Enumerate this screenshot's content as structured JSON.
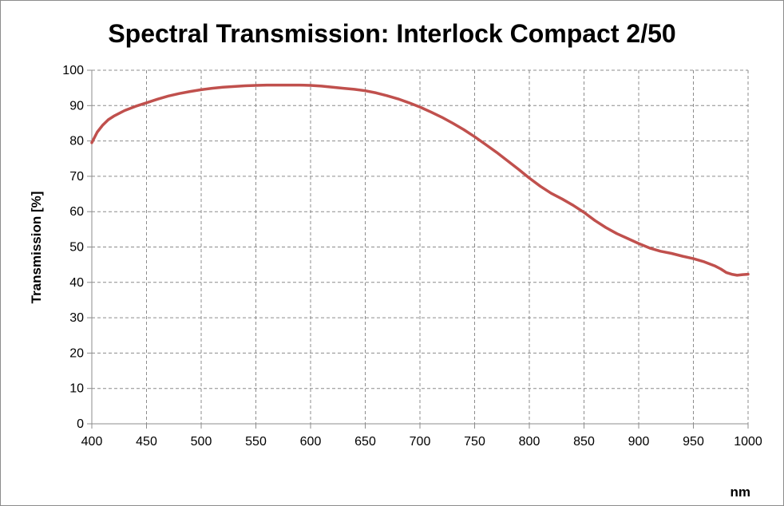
{
  "chart_data": {
    "type": "line",
    "title": "Spectral Transmission: Interlock Compact 2/50",
    "xlabel": "nm",
    "ylabel": "Transmission  [%]",
    "xlim": [
      400,
      1000
    ],
    "ylim": [
      0,
      100
    ],
    "x_ticks": [
      400,
      450,
      500,
      550,
      600,
      650,
      700,
      750,
      800,
      850,
      900,
      950,
      1000
    ],
    "y_ticks": [
      0,
      10,
      20,
      30,
      40,
      50,
      60,
      70,
      80,
      90,
      100
    ],
    "grid": true,
    "legend": "none",
    "series": [
      {
        "color": "#c0504d",
        "x": [
          400,
          405,
          410,
          415,
          420,
          430,
          440,
          450,
          460,
          470,
          480,
          490,
          500,
          510,
          520,
          530,
          540,
          550,
          560,
          570,
          580,
          590,
          600,
          610,
          620,
          630,
          640,
          650,
          660,
          670,
          680,
          690,
          700,
          710,
          720,
          730,
          740,
          750,
          760,
          770,
          780,
          790,
          800,
          810,
          820,
          830,
          840,
          850,
          860,
          870,
          880,
          890,
          900,
          910,
          920,
          930,
          940,
          950,
          960,
          970,
          975,
          980,
          985,
          990,
          995,
          1000
        ],
        "y": [
          79.5,
          82.5,
          84.5,
          86.0,
          87.0,
          88.6,
          89.8,
          90.8,
          91.8,
          92.7,
          93.4,
          94.0,
          94.5,
          94.9,
          95.2,
          95.4,
          95.6,
          95.7,
          95.8,
          95.8,
          95.8,
          95.8,
          95.7,
          95.5,
          95.2,
          94.9,
          94.6,
          94.2,
          93.6,
          92.8,
          91.9,
          90.8,
          89.6,
          88.2,
          86.7,
          85.0,
          83.2,
          81.2,
          79.0,
          76.8,
          74.4,
          72.0,
          69.5,
          67.2,
          65.2,
          63.6,
          61.8,
          59.8,
          57.5,
          55.5,
          53.8,
          52.4,
          51.0,
          49.7,
          48.8,
          48.2,
          47.4,
          46.7,
          45.8,
          44.6,
          43.8,
          42.8,
          42.3,
          42.0,
          42.2,
          42.3
        ]
      }
    ]
  }
}
